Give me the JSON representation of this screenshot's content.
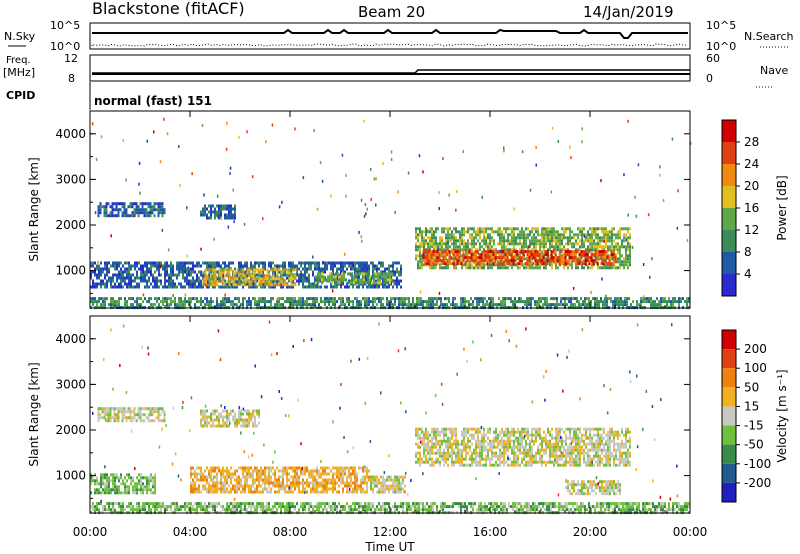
{
  "header": {
    "station": "Blackstone (fitACF)",
    "beam": "Beam 20",
    "date": "14/Jan/2019"
  },
  "top_panels": {
    "nsky_label": "N.Sky",
    "nsky_ticks": [
      "10^5",
      "10^0"
    ],
    "nsearch_label": "N.Search",
    "freq_label": "Freq.",
    "freq_unit": "[MHz]",
    "freq_ticks": [
      "12",
      "8"
    ],
    "nave_label": "Nave",
    "nave_ticks": [
      "60",
      "0"
    ],
    "cpid_label": "CPID",
    "cpid_value": "normal (fast) 151"
  },
  "chart_data": [
    {
      "type": "heatmap",
      "title": "",
      "xlabel": "Time UT",
      "ylabel": "Slant Range [km]",
      "x_ticks": [
        "00:00",
        "04:00",
        "08:00",
        "12:00",
        "16:00",
        "20:00",
        "00:00"
      ],
      "y_ticks": [
        "1000",
        "2000",
        "3000",
        "4000"
      ],
      "xlim": [
        0,
        24
      ],
      "ylim": [
        180,
        4500
      ],
      "colorbar": {
        "label": "Power [dB]",
        "ticks": [
          "28",
          "24",
          "20",
          "16",
          "12",
          "8",
          "4"
        ],
        "colors": [
          "#2a2ad0",
          "#1f5aa6",
          "#3c8c5a",
          "#5fa84a",
          "#e0c020",
          "#f08a10",
          "#e04010",
          "#d00000"
        ]
      },
      "bands": [
        {
          "t": [
            0.3,
            3.0
          ],
          "range": [
            2200,
            2500
          ],
          "level": 1
        },
        {
          "t": [
            4.4,
            5.8
          ],
          "range": [
            2150,
            2450
          ],
          "level": 1
        },
        {
          "t": [
            0.0,
            12.4
          ],
          "range": [
            620,
            1200
          ],
          "level": 1
        },
        {
          "t": [
            4.5,
            8.2
          ],
          "range": [
            700,
            1050
          ],
          "level": 4
        },
        {
          "t": [
            9.0,
            12.2
          ],
          "range": [
            700,
            960
          ],
          "level": 3
        },
        {
          "t": [
            13.0,
            21.6
          ],
          "range": [
            1050,
            1950
          ],
          "level": 3
        },
        {
          "t": [
            13.3,
            21.0
          ],
          "range": [
            1150,
            1450
          ],
          "level": 6
        },
        {
          "t": [
            0.0,
            24.0
          ],
          "range": [
            180,
            420
          ],
          "level": 2
        }
      ]
    },
    {
      "type": "heatmap",
      "title": "",
      "xlabel": "Time UT",
      "ylabel": "Slant Range [km]",
      "x_ticks": [
        "00:00",
        "04:00",
        "08:00",
        "12:00",
        "16:00",
        "20:00",
        "00:00"
      ],
      "y_ticks": [
        "1000",
        "2000",
        "3000",
        "4000"
      ],
      "xlim": [
        0,
        24
      ],
      "ylim": [
        180,
        4500
      ],
      "colorbar": {
        "label": "Velocity [m s⁻¹]",
        "ticks": [
          "200",
          "100",
          "50",
          "15",
          "-15",
          "-50",
          "-100",
          "-200"
        ],
        "colors": [
          "#2020c0",
          "#205a90",
          "#3a8a4a",
          "#70c040",
          "#c8c8c0",
          "#f0b020",
          "#f08010",
          "#e04010",
          "#d00000"
        ]
      },
      "bands": [
        {
          "t": [
            0.3,
            3.0
          ],
          "range": [
            2200,
            2500
          ],
          "level": 4
        },
        {
          "t": [
            4.4,
            6.8
          ],
          "range": [
            2100,
            2450
          ],
          "level": 4
        },
        {
          "t": [
            0.0,
            2.6
          ],
          "range": [
            620,
            1050
          ],
          "level": 3
        },
        {
          "t": [
            4.0,
            11.2
          ],
          "range": [
            620,
            1200
          ],
          "level": 5
        },
        {
          "t": [
            11.2,
            12.6
          ],
          "range": [
            620,
            1000
          ],
          "level": 4
        },
        {
          "t": [
            13.0,
            21.6
          ],
          "range": [
            1250,
            2050
          ],
          "level": 4
        },
        {
          "t": [
            19.0,
            21.2
          ],
          "range": [
            600,
            900
          ],
          "level": 4
        },
        {
          "t": [
            0.0,
            24.0
          ],
          "range": [
            180,
            420
          ],
          "level": 3
        }
      ]
    }
  ]
}
